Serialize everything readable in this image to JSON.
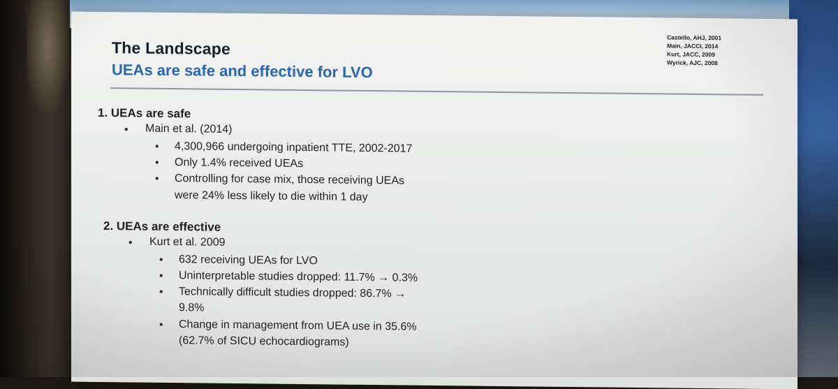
{
  "slide": {
    "title": "The Landscape",
    "subtitle": "UEAs are safe and effective for LVO",
    "references": [
      "Castello, AHJ, 2001",
      "Main, JACCI, 2014",
      "Kurt, JACC, 2009",
      "Wyrick, AJC, 2008"
    ],
    "section1": {
      "heading": "1.  UEAs are safe",
      "study": "Main et al. (2014)",
      "points": [
        "4,300,966 undergoing inpatient TTE, 2002-2017",
        "Only 1.4% received UEAs",
        "Controlling for case mix, those receiving UEAs",
        "were 24% less likely to die within 1 day"
      ]
    },
    "section2": {
      "heading": "2.  UEAs are effective",
      "study": "Kurt et al. 2009",
      "points": [
        "632 receiving UEAs for LVO",
        "Uninterpretable studies dropped: 11.7% → 0.3%",
        "Technically difficult studies dropped: 86.7% →",
        "9.8%",
        "Change in management from UEA use in 35.6%",
        "(62.7% of SICU echocardiograms)"
      ]
    },
    "bullet_glyph": "•"
  }
}
